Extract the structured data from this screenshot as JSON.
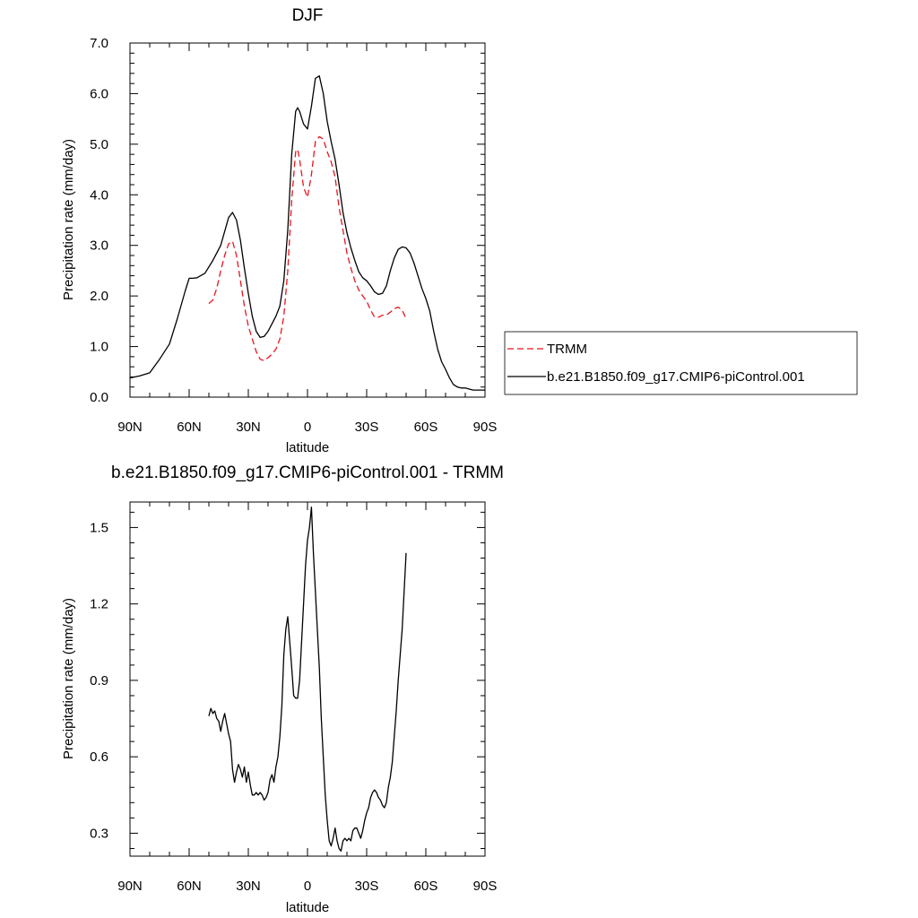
{
  "chart_data": [
    {
      "type": "line",
      "title": "DJF",
      "xlabel": "latitude",
      "ylabel": "Precipitation rate (mm/day)",
      "xlim": [
        -90,
        90
      ],
      "ylim": [
        0.0,
        7.0
      ],
      "x_ticks": [
        -90,
        -60,
        -30,
        0,
        30,
        60,
        90
      ],
      "x_tick_labels": [
        "90N",
        "60N",
        "30N",
        "0",
        "30S",
        "60S",
        "90S"
      ],
      "y_ticks": [
        0,
        1,
        2,
        3,
        4,
        5,
        6,
        7
      ],
      "y_tick_labels": [
        "0.0",
        "1.0",
        "2.0",
        "3.0",
        "4.0",
        "5.0",
        "6.0",
        "7.0"
      ],
      "legend_position": "outside-right",
      "series": [
        {
          "name": "TRMM",
          "color": "#e8141e",
          "dash": "dashed",
          "x": [
            -50,
            -48,
            -46,
            -44,
            -42,
            -40,
            -38,
            -36,
            -34,
            -32,
            -30,
            -28,
            -26,
            -24,
            -22,
            -20,
            -18,
            -16,
            -14,
            -12,
            -10,
            -8,
            -6,
            -5,
            -4,
            -2,
            0,
            2,
            4,
            6,
            8,
            10,
            12,
            14,
            16,
            18,
            20,
            22,
            24,
            26,
            28,
            30,
            32,
            34,
            36,
            38,
            40,
            42,
            44,
            46,
            48,
            50
          ],
          "y": [
            1.85,
            1.92,
            2.15,
            2.5,
            2.8,
            3.03,
            3.08,
            2.8,
            2.3,
            1.8,
            1.4,
            1.15,
            0.9,
            0.75,
            0.72,
            0.78,
            0.85,
            0.95,
            1.15,
            1.6,
            2.5,
            3.9,
            4.85,
            4.9,
            4.7,
            4.15,
            3.95,
            4.4,
            5.05,
            5.15,
            5.1,
            4.85,
            4.65,
            4.35,
            3.75,
            3.3,
            2.85,
            2.55,
            2.3,
            2.12,
            2.0,
            1.9,
            1.72,
            1.58,
            1.58,
            1.62,
            1.62,
            1.68,
            1.75,
            1.78,
            1.72,
            1.55
          ]
        },
        {
          "name": "b.e21.B1850.f09_g17.CMIP6-piControl.001",
          "color": "#000000",
          "dash": "solid",
          "x": [
            -90,
            -85,
            -80,
            -75,
            -70,
            -66,
            -62,
            -60,
            -58,
            -56,
            -52,
            -48,
            -44,
            -40,
            -38,
            -36,
            -34,
            -32,
            -30,
            -28,
            -26,
            -24,
            -22,
            -20,
            -18,
            -16,
            -14,
            -12,
            -10,
            -8,
            -6,
            -5,
            -4,
            -2,
            0,
            2,
            4,
            6,
            8,
            10,
            12,
            14,
            16,
            18,
            20,
            22,
            24,
            26,
            28,
            30,
            32,
            34,
            36,
            38,
            40,
            42,
            44,
            46,
            48,
            50,
            52,
            54,
            56,
            58,
            60,
            62,
            64,
            66,
            68,
            70,
            72,
            74,
            76,
            78,
            80,
            82,
            84,
            86,
            88,
            90
          ],
          "y": [
            0.38,
            0.42,
            0.48,
            0.75,
            1.05,
            1.55,
            2.1,
            2.35,
            2.35,
            2.36,
            2.45,
            2.7,
            3.0,
            3.55,
            3.65,
            3.5,
            3.1,
            2.55,
            2.05,
            1.6,
            1.3,
            1.18,
            1.2,
            1.3,
            1.45,
            1.6,
            1.8,
            2.3,
            3.3,
            4.8,
            5.65,
            5.72,
            5.65,
            5.4,
            5.3,
            5.75,
            6.3,
            6.35,
            6.0,
            5.45,
            5.05,
            4.7,
            4.2,
            3.65,
            3.25,
            2.95,
            2.7,
            2.48,
            2.36,
            2.3,
            2.2,
            2.08,
            2.03,
            2.05,
            2.2,
            2.5,
            2.75,
            2.92,
            2.97,
            2.95,
            2.85,
            2.65,
            2.4,
            2.15,
            1.95,
            1.7,
            1.3,
            0.95,
            0.7,
            0.55,
            0.38,
            0.25,
            0.2,
            0.18,
            0.18,
            0.16,
            0.14,
            0.14,
            0.14,
            0.14
          ]
        }
      ]
    },
    {
      "type": "line",
      "title": "b.e21.B1850.f09_g17.CMIP6-piControl.001 - TRMM",
      "xlabel": "latitude",
      "ylabel": "Precipitation rate (mm/day)",
      "xlim": [
        -90,
        90
      ],
      "ylim": [
        0.21,
        1.6
      ],
      "x_ticks": [
        -90,
        -60,
        -30,
        0,
        30,
        60,
        90
      ],
      "x_tick_labels": [
        "90N",
        "60N",
        "30N",
        "0",
        "30S",
        "60S",
        "90S"
      ],
      "y_ticks": [
        0.3,
        0.6,
        0.9,
        1.2,
        1.5
      ],
      "y_tick_labels": [
        "0.3",
        "0.6",
        "0.9",
        "1.2",
        "1.5"
      ],
      "series": [
        {
          "name": "b.e21.B1850.f09_g17.CMIP6-piControl.001 - TRMM",
          "color": "#000000",
          "dash": "solid",
          "x": [
            -50,
            -49,
            -48,
            -47,
            -46,
            -45,
            -44,
            -43,
            -42,
            -41,
            -40,
            -39,
            -38,
            -37,
            -36,
            -35,
            -34,
            -33,
            -32,
            -31,
            -30,
            -29,
            -28,
            -27,
            -26,
            -25,
            -24,
            -23,
            -22,
            -21,
            -20,
            -19,
            -18,
            -17,
            -16,
            -15,
            -14,
            -13,
            -12,
            -11,
            -10,
            -9,
            -8,
            -7,
            -6,
            -5,
            -4,
            -3,
            -2,
            -1,
            0,
            1,
            2,
            3,
            4,
            5,
            6,
            7,
            8,
            9,
            10,
            11,
            12,
            13,
            14,
            15,
            16,
            17,
            18,
            19,
            20,
            21,
            22,
            23,
            24,
            25,
            26,
            27,
            28,
            29,
            30,
            31,
            32,
            33,
            34,
            35,
            36,
            37,
            38,
            39,
            40,
            41,
            42,
            43,
            44,
            45,
            46,
            47,
            48,
            49,
            50
          ],
          "y": [
            0.76,
            0.79,
            0.77,
            0.78,
            0.75,
            0.74,
            0.7,
            0.74,
            0.77,
            0.73,
            0.69,
            0.66,
            0.55,
            0.5,
            0.54,
            0.57,
            0.55,
            0.52,
            0.56,
            0.5,
            0.54,
            0.49,
            0.45,
            0.45,
            0.46,
            0.45,
            0.46,
            0.45,
            0.43,
            0.44,
            0.46,
            0.51,
            0.53,
            0.5,
            0.56,
            0.6,
            0.68,
            0.8,
            1.0,
            1.1,
            1.15,
            1.05,
            0.95,
            0.84,
            0.83,
            0.83,
            0.9,
            1.05,
            1.2,
            1.35,
            1.45,
            1.5,
            1.58,
            1.4,
            1.25,
            1.1,
            0.95,
            0.75,
            0.6,
            0.45,
            0.35,
            0.27,
            0.25,
            0.28,
            0.32,
            0.27,
            0.24,
            0.23,
            0.27,
            0.28,
            0.27,
            0.28,
            0.27,
            0.31,
            0.32,
            0.32,
            0.3,
            0.28,
            0.31,
            0.35,
            0.38,
            0.4,
            0.44,
            0.46,
            0.47,
            0.46,
            0.44,
            0.43,
            0.41,
            0.4,
            0.42,
            0.48,
            0.52,
            0.58,
            0.68,
            0.78,
            0.9,
            1.0,
            1.1,
            1.25,
            1.4
          ]
        }
      ]
    }
  ]
}
